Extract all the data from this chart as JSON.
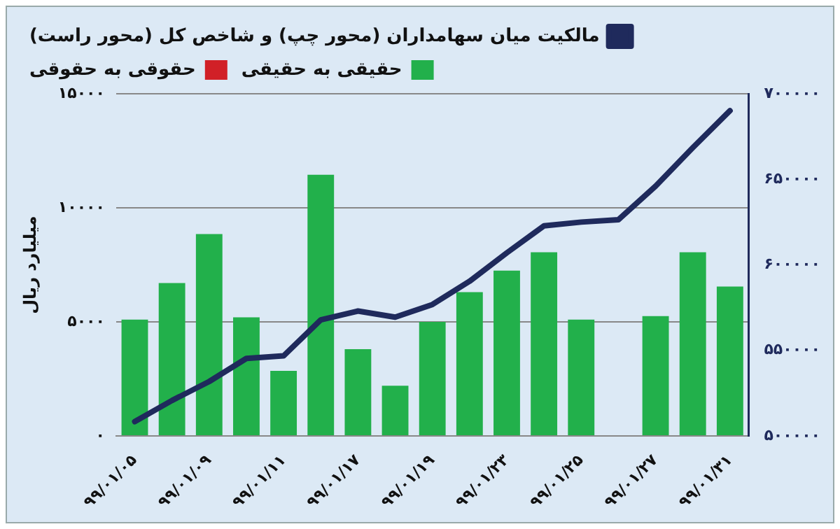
{
  "chart_data": {
    "type": "bar",
    "categories": [
      "۹۹/۰۱/۰۵",
      null,
      "۹۹/۰۱/۰۹",
      null,
      "۹۹/۰۱/۱۱",
      null,
      "۹۹/۰۱/۱۷",
      null,
      "۹۹/۰۱/۱۹",
      null,
      "۹۹/۰۱/۲۳",
      null,
      "۹۹/۰۱/۲۵",
      null,
      "۹۹/۰۱/۲۷",
      null,
      "۹۹/۰۱/۳۱"
    ],
    "series": [
      {
        "name": "مالکیت میان سهامداران (محور چپ) و شاخص کل (محور راست)",
        "type": "line",
        "axis": "y2",
        "color": "#1f2a5c",
        "values": [
          508400,
          520700,
          531800,
          545300,
          546800,
          567800,
          573000,
          569400,
          576800,
          590400,
          607000,
          622800,
          625000,
          626400,
          646000,
          668500,
          690100
        ]
      },
      {
        "name": "حقیقی به حقیقی",
        "color": "#22b04b",
        "values": [
          5100,
          6700,
          8850,
          5200,
          2850,
          11450,
          3800,
          2200,
          5000,
          6300,
          7250,
          8050,
          5100,
          0,
          5250,
          8050,
          6550
        ]
      },
      {
        "name": "حقوقی به حقوقی",
        "color": "#d12027",
        "values": [
          0,
          0,
          0,
          0,
          0,
          0,
          0,
          0,
          0,
          0,
          0,
          0,
          0,
          0,
          0,
          0,
          0
        ]
      }
    ],
    "ylabel": "میلیارد ریال",
    "ylim": [
      0,
      15000
    ],
    "yticks": [
      {
        "value": 0,
        "label": "۰"
      },
      {
        "value": 5000,
        "label": "۵۰۰۰"
      },
      {
        "value": 10000,
        "label": "۱۰۰۰۰"
      },
      {
        "value": 15000,
        "label": "۱۵۰۰۰"
      }
    ],
    "y2lim": [
      500000,
      700000
    ],
    "y2ticks": [
      {
        "value": 500000,
        "label": "۵۰۰۰۰۰"
      },
      {
        "value": 550000,
        "label": "۵۵۰۰۰۰"
      },
      {
        "value": 600000,
        "label": "۶۰۰۰۰۰"
      },
      {
        "value": 650000,
        "label": "۶۵۰۰۰۰"
      },
      {
        "value": 700000,
        "label": "۷۰۰۰۰۰"
      }
    ],
    "grid": "y",
    "legend": "top",
    "marker": "none",
    "line_style": "solid"
  }
}
